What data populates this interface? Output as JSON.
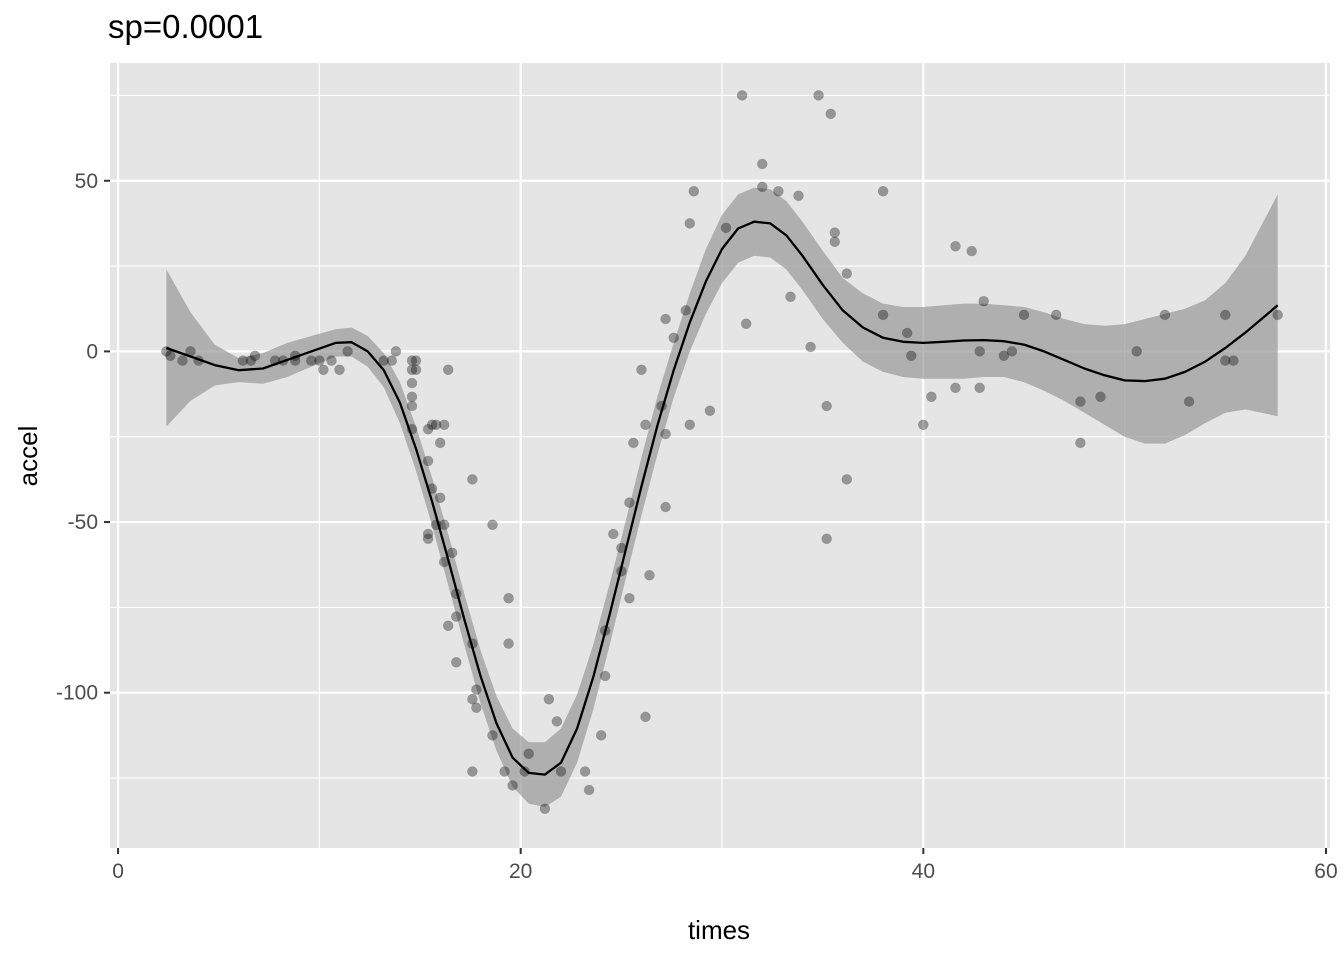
{
  "chart_data": {
    "type": "scatter",
    "title": "sp=0.0001",
    "xlabel": "times",
    "ylabel": "accel",
    "xlim": [
      -0.4,
      60.2
    ],
    "ylim": [
      -145.5,
      84.5
    ],
    "x_ticks": [
      0,
      20,
      40,
      60
    ],
    "x_tick_labels": [
      "0",
      "20",
      "40",
      "60"
    ],
    "y_ticks": [
      -100,
      -50,
      0,
      50
    ],
    "y_tick_labels": [
      "-100",
      "-50",
      "0",
      "50"
    ],
    "x_minor_ticks": [
      10,
      30,
      50
    ],
    "y_minor_ticks": [
      -125,
      -75,
      -25,
      25,
      75
    ],
    "grid": true,
    "legend": "none",
    "colors": {
      "panel_background": "#e5e5e5",
      "grid": "#ffffff",
      "points": "#000000",
      "point_opacity": 0.35,
      "band": "#999999",
      "band_opacity": 0.7,
      "line": "#000000"
    },
    "points": [
      {
        "x": 2.4,
        "y": 0.0
      },
      {
        "x": 2.6,
        "y": -1.3
      },
      {
        "x": 3.2,
        "y": -2.7
      },
      {
        "x": 3.6,
        "y": 0.0
      },
      {
        "x": 4.0,
        "y": -2.7
      },
      {
        "x": 6.2,
        "y": -2.7
      },
      {
        "x": 6.6,
        "y": -2.7
      },
      {
        "x": 6.8,
        "y": -1.3
      },
      {
        "x": 7.8,
        "y": -2.7
      },
      {
        "x": 8.2,
        "y": -2.7
      },
      {
        "x": 8.8,
        "y": -1.3
      },
      {
        "x": 8.8,
        "y": -2.7
      },
      {
        "x": 9.6,
        "y": -2.7
      },
      {
        "x": 10.0,
        "y": -2.7
      },
      {
        "x": 10.2,
        "y": -5.4
      },
      {
        "x": 10.6,
        "y": -2.7
      },
      {
        "x": 11.0,
        "y": -5.4
      },
      {
        "x": 11.4,
        "y": 0.0
      },
      {
        "x": 13.2,
        "y": -2.7
      },
      {
        "x": 13.6,
        "y": -2.7
      },
      {
        "x": 13.8,
        "y": 0.0
      },
      {
        "x": 14.6,
        "y": -13.3
      },
      {
        "x": 14.6,
        "y": -2.7
      },
      {
        "x": 14.6,
        "y": -22.8
      },
      {
        "x": 14.6,
        "y": -5.4
      },
      {
        "x": 14.6,
        "y": -9.3
      },
      {
        "x": 14.6,
        "y": -16.0
      },
      {
        "x": 14.8,
        "y": -2.7
      },
      {
        "x": 14.8,
        "y": -5.4
      },
      {
        "x": 15.4,
        "y": -22.8
      },
      {
        "x": 15.4,
        "y": -32.1
      },
      {
        "x": 15.4,
        "y": -53.5
      },
      {
        "x": 15.4,
        "y": -54.9
      },
      {
        "x": 15.6,
        "y": -21.5
      },
      {
        "x": 15.6,
        "y": -40.2
      },
      {
        "x": 15.8,
        "y": -21.5
      },
      {
        "x": 15.8,
        "y": -50.8
      },
      {
        "x": 16.0,
        "y": -42.9
      },
      {
        "x": 16.0,
        "y": -26.8
      },
      {
        "x": 16.2,
        "y": -21.5
      },
      {
        "x": 16.2,
        "y": -50.8
      },
      {
        "x": 16.2,
        "y": -61.7
      },
      {
        "x": 16.4,
        "y": -5.4
      },
      {
        "x": 16.4,
        "y": -80.4
      },
      {
        "x": 16.6,
        "y": -59.0
      },
      {
        "x": 16.8,
        "y": -71.0
      },
      {
        "x": 16.8,
        "y": -91.1
      },
      {
        "x": 16.8,
        "y": -77.7
      },
      {
        "x": 17.6,
        "y": -37.5
      },
      {
        "x": 17.6,
        "y": -85.6
      },
      {
        "x": 17.6,
        "y": -123.1
      },
      {
        "x": 17.6,
        "y": -101.9
      },
      {
        "x": 17.8,
        "y": -99.1
      },
      {
        "x": 17.8,
        "y": -104.4
      },
      {
        "x": 18.6,
        "y": -112.5
      },
      {
        "x": 18.6,
        "y": -50.8
      },
      {
        "x": 19.2,
        "y": -123.1
      },
      {
        "x": 19.4,
        "y": -85.6
      },
      {
        "x": 19.4,
        "y": -72.3
      },
      {
        "x": 19.6,
        "y": -127.2
      },
      {
        "x": 20.2,
        "y": -123.1
      },
      {
        "x": 20.4,
        "y": -117.9
      },
      {
        "x": 21.2,
        "y": -134.0
      },
      {
        "x": 21.4,
        "y": -101.9
      },
      {
        "x": 21.8,
        "y": -108.4
      },
      {
        "x": 22.0,
        "y": -123.1
      },
      {
        "x": 23.2,
        "y": -123.1
      },
      {
        "x": 23.4,
        "y": -128.5
      },
      {
        "x": 24.0,
        "y": -112.5
      },
      {
        "x": 24.2,
        "y": -95.1
      },
      {
        "x": 24.2,
        "y": -81.8
      },
      {
        "x": 24.6,
        "y": -53.5
      },
      {
        "x": 25.0,
        "y": -64.4
      },
      {
        "x": 25.0,
        "y": -57.6
      },
      {
        "x": 25.4,
        "y": -72.3
      },
      {
        "x": 25.4,
        "y": -44.3
      },
      {
        "x": 25.6,
        "y": -26.8
      },
      {
        "x": 26.0,
        "y": -5.4
      },
      {
        "x": 26.2,
        "y": -107.1
      },
      {
        "x": 26.2,
        "y": -21.5
      },
      {
        "x": 26.4,
        "y": -65.6
      },
      {
        "x": 27.0,
        "y": -16.0
      },
      {
        "x": 27.2,
        "y": -45.6
      },
      {
        "x": 27.2,
        "y": -24.2
      },
      {
        "x": 27.2,
        "y": 9.5
      },
      {
        "x": 27.6,
        "y": 4.0
      },
      {
        "x": 28.2,
        "y": 12.0
      },
      {
        "x": 28.4,
        "y": -21.5
      },
      {
        "x": 28.4,
        "y": 37.5
      },
      {
        "x": 28.6,
        "y": 46.9
      },
      {
        "x": 29.4,
        "y": -17.4
      },
      {
        "x": 30.2,
        "y": 36.2
      },
      {
        "x": 31.0,
        "y": 75.0
      },
      {
        "x": 31.2,
        "y": 8.1
      },
      {
        "x": 32.0,
        "y": 54.9
      },
      {
        "x": 32.0,
        "y": 48.2
      },
      {
        "x": 32.8,
        "y": 46.9
      },
      {
        "x": 33.4,
        "y": 16.0
      },
      {
        "x": 33.8,
        "y": 45.6
      },
      {
        "x": 34.4,
        "y": 1.3
      },
      {
        "x": 34.8,
        "y": 75.0
      },
      {
        "x": 35.2,
        "y": -16.0
      },
      {
        "x": 35.2,
        "y": -54.9
      },
      {
        "x": 35.4,
        "y": 69.6
      },
      {
        "x": 35.6,
        "y": 34.8
      },
      {
        "x": 35.6,
        "y": 32.1
      },
      {
        "x": 36.2,
        "y": 22.8
      },
      {
        "x": 36.2,
        "y": -37.5
      },
      {
        "x": 38.0,
        "y": 46.9
      },
      {
        "x": 38.0,
        "y": 10.7
      },
      {
        "x": 39.2,
        "y": 5.4
      },
      {
        "x": 39.4,
        "y": -1.3
      },
      {
        "x": 40.0,
        "y": -21.5
      },
      {
        "x": 40.4,
        "y": -13.3
      },
      {
        "x": 41.6,
        "y": 30.8
      },
      {
        "x": 41.6,
        "y": -10.7
      },
      {
        "x": 42.4,
        "y": 29.4
      },
      {
        "x": 42.8,
        "y": 0.0
      },
      {
        "x": 42.8,
        "y": -10.7
      },
      {
        "x": 43.0,
        "y": 14.7
      },
      {
        "x": 44.0,
        "y": -1.3
      },
      {
        "x": 44.4,
        "y": 0.0
      },
      {
        "x": 45.0,
        "y": 10.7
      },
      {
        "x": 46.6,
        "y": 10.7
      },
      {
        "x": 47.8,
        "y": -26.8
      },
      {
        "x": 47.8,
        "y": -14.7
      },
      {
        "x": 48.8,
        "y": -13.3
      },
      {
        "x": 50.6,
        "y": 0.0
      },
      {
        "x": 52.0,
        "y": 10.7
      },
      {
        "x": 53.2,
        "y": -14.7
      },
      {
        "x": 55.0,
        "y": -2.7
      },
      {
        "x": 55.0,
        "y": 10.7
      },
      {
        "x": 55.4,
        "y": -2.7
      },
      {
        "x": 57.6,
        "y": 10.7
      }
    ],
    "fit": {
      "x": [
        2.4,
        3.6,
        4.8,
        6.0,
        7.2,
        8.4,
        9.6,
        10.8,
        11.6,
        12.4,
        13.2,
        14.0,
        14.8,
        15.6,
        16.4,
        17.2,
        18.0,
        18.8,
        19.6,
        20.4,
        21.2,
        22.0,
        22.8,
        23.6,
        24.4,
        25.2,
        26.0,
        26.8,
        27.6,
        28.4,
        29.2,
        30.0,
        30.8,
        31.6,
        32.4,
        33.2,
        34.0,
        35.0,
        36.0,
        37.0,
        38.0,
        39.0,
        40.0,
        41.0,
        42.0,
        43.0,
        44.0,
        45.0,
        46.0,
        47.0,
        48.0,
        49.0,
        50.0,
        51.0,
        52.0,
        53.0,
        54.0,
        55.0,
        56.0,
        57.6
      ],
      "y": [
        1.0,
        -1.5,
        -4.0,
        -5.5,
        -5.0,
        -2.5,
        0.0,
        2.5,
        2.7,
        0.0,
        -5.5,
        -15.0,
        -28.5,
        -44.0,
        -61.0,
        -78.5,
        -95.0,
        -109.0,
        -119.0,
        -123.5,
        -124.0,
        -120.5,
        -110.5,
        -95.5,
        -77.5,
        -58.5,
        -39.5,
        -21.5,
        -5.5,
        8.5,
        20.5,
        30.0,
        36.0,
        38.0,
        37.5,
        34.0,
        28.0,
        19.5,
        12.0,
        7.0,
        4.0,
        2.8,
        2.5,
        2.8,
        3.2,
        3.3,
        3.0,
        2.0,
        0.0,
        -2.5,
        -5.0,
        -7.0,
        -8.5,
        -8.7,
        -8.0,
        -6.0,
        -3.0,
        1.0,
        5.5,
        13.5
      ],
      "lower": [
        -22.0,
        -14.5,
        -10.0,
        -9.0,
        -9.5,
        -7.5,
        -4.5,
        -1.5,
        -1.5,
        -4.5,
        -10.5,
        -21.0,
        -35.0,
        -51.0,
        -68.5,
        -86.0,
        -103.0,
        -117.0,
        -127.5,
        -132.5,
        -133.5,
        -130.5,
        -120.5,
        -105.0,
        -86.5,
        -67.0,
        -48.0,
        -30.0,
        -13.5,
        0.0,
        11.0,
        20.0,
        26.0,
        28.0,
        27.5,
        24.0,
        18.0,
        9.5,
        2.5,
        -3.0,
        -6.0,
        -7.5,
        -8.0,
        -8.0,
        -8.0,
        -7.5,
        -7.5,
        -9.0,
        -11.5,
        -14.5,
        -18.0,
        -21.5,
        -25.0,
        -27.0,
        -27.0,
        -24.5,
        -21.0,
        -18.0,
        -17.0,
        -19.0
      ],
      "upper": [
        24.0,
        11.5,
        2.0,
        -2.0,
        -0.5,
        2.5,
        4.5,
        6.5,
        7.0,
        4.5,
        -0.5,
        -9.0,
        -22.0,
        -37.0,
        -53.5,
        -71.0,
        -87.5,
        -101.0,
        -110.5,
        -114.5,
        -114.5,
        -110.5,
        -100.5,
        -86.0,
        -68.5,
        -50.0,
        -31.0,
        -13.0,
        2.5,
        17.0,
        30.0,
        40.0,
        46.0,
        48.0,
        47.5,
        44.0,
        38.0,
        29.5,
        21.5,
        17.0,
        14.0,
        13.0,
        13.0,
        13.5,
        14.0,
        14.0,
        13.5,
        13.0,
        11.5,
        9.5,
        8.0,
        7.5,
        8.0,
        9.5,
        11.0,
        12.5,
        15.0,
        20.0,
        28.0,
        46.0
      ]
    }
  }
}
